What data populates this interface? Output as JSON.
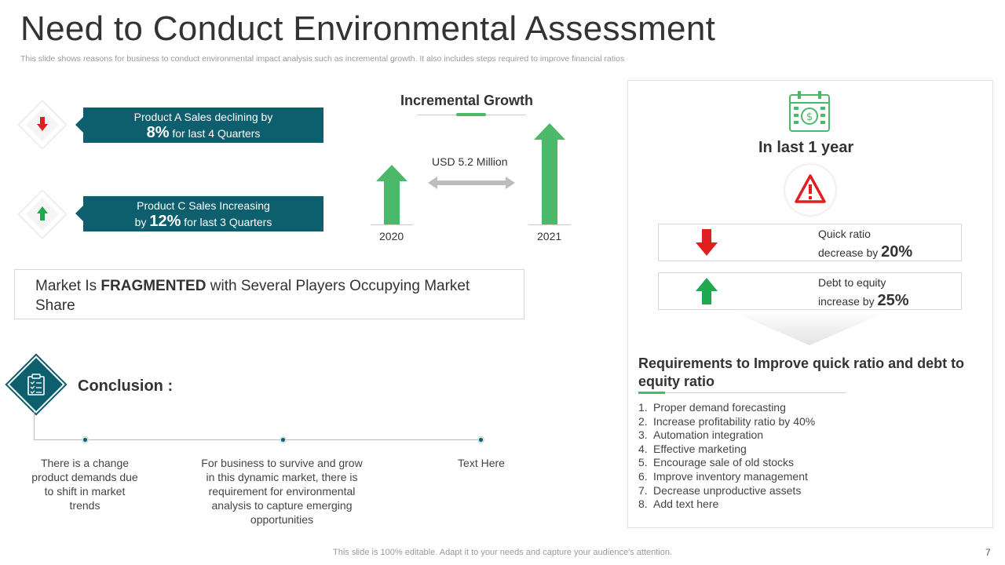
{
  "header": {
    "title": "Need to Conduct Environmental Assessment",
    "subtitle": "This slide shows reasons for business to conduct environmental impact analysis such as incremental growth. It also includes steps required to improve financial ratios"
  },
  "products": [
    {
      "line1": "Product A Sales declining by",
      "pct": "8%",
      "line2": " for last 4 Quarters",
      "pre2": "",
      "direction": "down",
      "color": "#e02020"
    },
    {
      "line1": "Product C Sales Increasing",
      "pre2": "by ",
      "pct": "12%",
      "line2": " for last 3 Quarters",
      "direction": "up",
      "color": "#1fa84f"
    }
  ],
  "incremental_growth": {
    "title": "Incremental Growth",
    "amount": "USD 5.2 Million",
    "years": [
      "2020",
      "2021"
    ],
    "accent": "#4cb86a"
  },
  "market": {
    "pre": "Market Is ",
    "bold": "FRAGMENTED",
    "post": " with Several Players Occupying Market Share"
  },
  "conclusion": {
    "title": "Conclusion :",
    "icon": "clipboard-checklist-icon",
    "points": [
      "There is a change product demands due to shift in market trends",
      "For business to survive and grow in this dynamic market, there is requirement for environmental analysis to capture emerging opportunities",
      "Text Here"
    ]
  },
  "right_panel": {
    "icon": "calendar-dollar-icon",
    "heading": "In last 1 year",
    "warning_icon": "warning-triangle-icon",
    "ratios": [
      {
        "label": "Quick ratio",
        "change": "decrease by ",
        "pct": "20%",
        "direction": "down"
      },
      {
        "label": "Debt to equity",
        "change": "increase by ",
        "pct": "25%",
        "direction": "up"
      }
    ],
    "requirements_title": "Requirements to Improve quick ratio and debt to equity ratio",
    "requirements": [
      "Proper demand forecasting",
      "Increase profitability ratio by 40%",
      "Automation integration",
      "Effective marketing",
      "Encourage sale of old stocks",
      "Improve inventory management",
      "Decrease unproductive assets",
      "Add text here"
    ]
  },
  "footer": {
    "note": "This slide is 100% editable. Adapt it to your needs and capture your audience's attention.",
    "page": "7"
  },
  "colors": {
    "teal": "#0e5f6e",
    "green": "#4cb86a",
    "red": "#e02020"
  }
}
